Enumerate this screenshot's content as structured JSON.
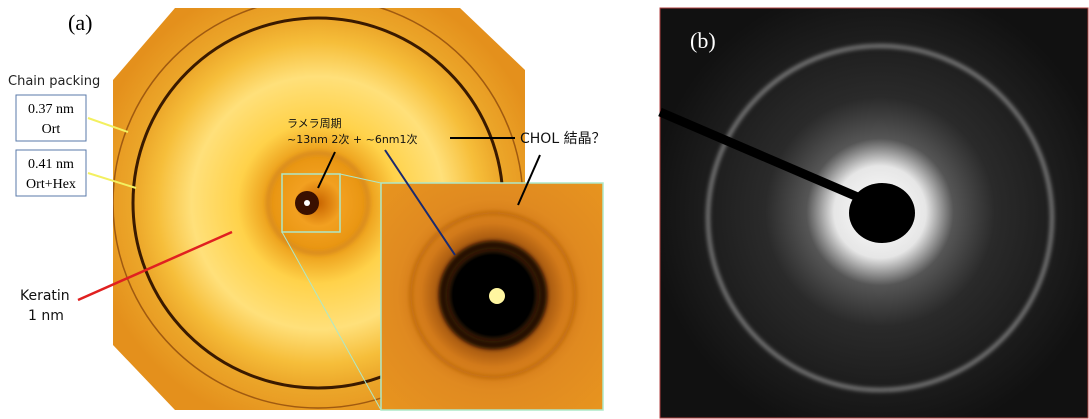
{
  "panel_a": {
    "label": "(a)",
    "chain_packing": {
      "title": "Chain packing",
      "boxes": [
        {
          "value": "0.37 nm",
          "phase": "Ort"
        },
        {
          "value": "0.41 nm",
          "phase": "Ort+Hex"
        }
      ]
    },
    "lamellar": {
      "title": "ラメラ周期",
      "detail": "~13nm 2次 + ~6nm1次"
    },
    "chol": "CHOL 結晶？",
    "keratin": {
      "name": "Keratin",
      "size": "1 nm"
    }
  },
  "panel_b": {
    "label": "(b)"
  }
}
